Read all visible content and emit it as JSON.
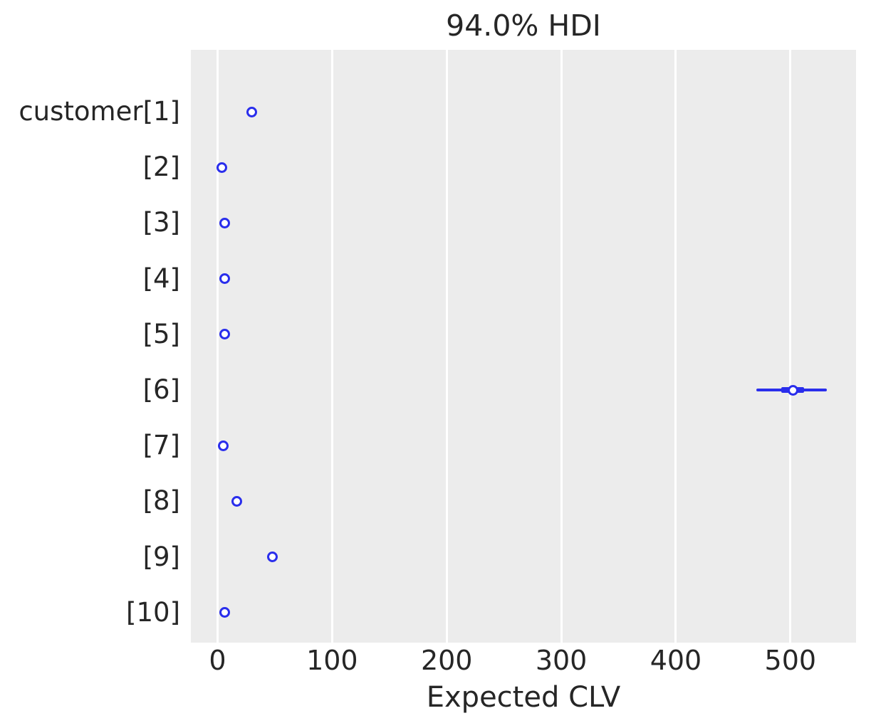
{
  "chart_data": {
    "type": "scatter",
    "variant": "forest-plot-hdi",
    "title": "94.0% HDI",
    "xlabel": "Expected CLV",
    "ylabel": "",
    "xlim": [
      -23.3,
      557.3
    ],
    "x_ticks": [
      0,
      100,
      200,
      300,
      400,
      500
    ],
    "grid": "vertical white gridlines on light gray panel, no horizontal gridlines, no axis spines",
    "legend": "none",
    "categories": [
      "customer[1]",
      "[2]",
      "[3]",
      "[4]",
      "[5]",
      "[6]",
      "[7]",
      "[8]",
      "[9]",
      "[10]"
    ],
    "rows": [
      {
        "label": "customer[1]",
        "point": 30,
        "hdi": [
          30,
          30
        ],
        "quartile": [
          30,
          30
        ]
      },
      {
        "label": "[2]",
        "point": 4,
        "hdi": [
          4,
          4
        ],
        "quartile": [
          4,
          4
        ]
      },
      {
        "label": "[3]",
        "point": 6,
        "hdi": [
          6,
          6
        ],
        "quartile": [
          6,
          6
        ]
      },
      {
        "label": "[4]",
        "point": 6,
        "hdi": [
          6,
          6
        ],
        "quartile": [
          6,
          6
        ]
      },
      {
        "label": "[5]",
        "point": 6,
        "hdi": [
          6,
          6
        ],
        "quartile": [
          6,
          6
        ]
      },
      {
        "label": "[6]",
        "point": 502,
        "hdi": [
          470,
          532
        ],
        "quartile": [
          492,
          512
        ]
      },
      {
        "label": "[7]",
        "point": 5,
        "hdi": [
          5,
          5
        ],
        "quartile": [
          5,
          5
        ]
      },
      {
        "label": "[8]",
        "point": 17,
        "hdi": [
          17,
          17
        ],
        "quartile": [
          17,
          17
        ]
      },
      {
        "label": "[9]",
        "point": 48,
        "hdi": [
          48,
          48
        ],
        "quartile": [
          48,
          48
        ]
      },
      {
        "label": "[10]",
        "point": 6,
        "hdi": [
          6,
          6
        ],
        "quartile": [
          6,
          6
        ]
      }
    ],
    "colors": {
      "marker": "#2a2eec",
      "marker_face": "#ffffff",
      "plot_bg": "#ececec",
      "grid": "#ffffff",
      "text": "#262626",
      "figure_bg": "#ffffff"
    }
  }
}
